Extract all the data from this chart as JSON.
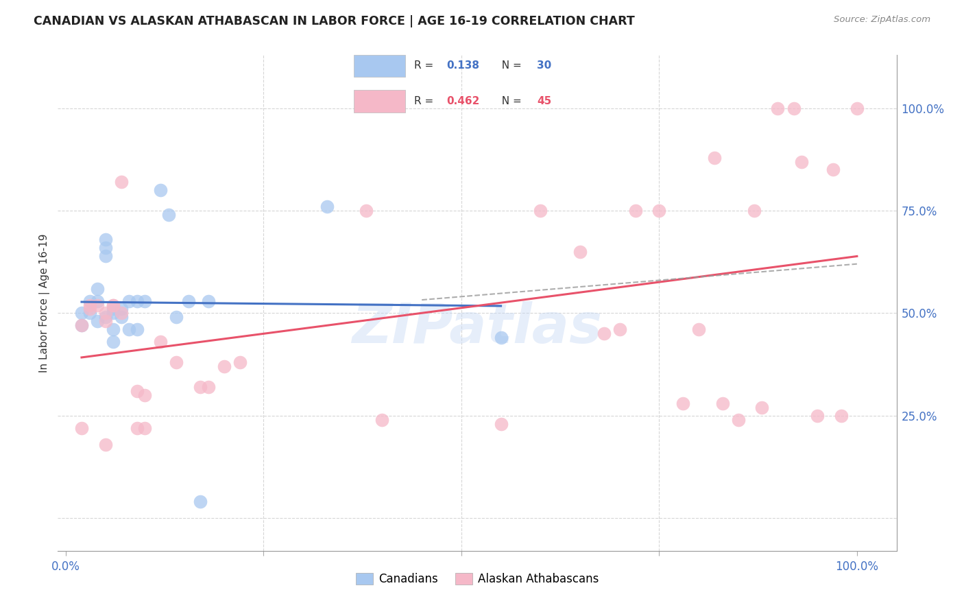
{
  "title": "CANADIAN VS ALASKAN ATHABASCAN IN LABOR FORCE | AGE 16-19 CORRELATION CHART",
  "source": "Source: ZipAtlas.com",
  "ylabel": "In Labor Force | Age 16-19",
  "canadian_color": "#A8C8F0",
  "alaskan_color": "#F5B8C8",
  "canadian_line_color": "#4472C4",
  "alaskan_line_color": "#E8526A",
  "watermark": "ZIPatlas",
  "canadians_x": [
    0.02,
    0.02,
    0.03,
    0.03,
    0.04,
    0.04,
    0.04,
    0.05,
    0.05,
    0.05,
    0.05,
    0.06,
    0.06,
    0.06,
    0.06,
    0.07,
    0.07,
    0.08,
    0.08,
    0.09,
    0.09,
    0.1,
    0.12,
    0.13,
    0.14,
    0.155,
    0.17,
    0.18,
    0.33,
    0.55
  ],
  "canadians_y": [
    0.5,
    0.47,
    0.5,
    0.53,
    0.53,
    0.56,
    0.48,
    0.64,
    0.66,
    0.68,
    0.49,
    0.51,
    0.5,
    0.46,
    0.43,
    0.49,
    0.51,
    0.53,
    0.46,
    0.53,
    0.46,
    0.53,
    0.8,
    0.74,
    0.49,
    0.53,
    0.04,
    0.53,
    0.76,
    0.44
  ],
  "alaskans_x": [
    0.02,
    0.02,
    0.03,
    0.03,
    0.04,
    0.05,
    0.05,
    0.05,
    0.06,
    0.06,
    0.07,
    0.07,
    0.09,
    0.09,
    0.1,
    0.1,
    0.12,
    0.14,
    0.17,
    0.18,
    0.22,
    0.4,
    0.55,
    0.65,
    0.7,
    0.72,
    0.75,
    0.8,
    0.82,
    0.85,
    0.87,
    0.88,
    0.9,
    0.92,
    0.93,
    0.95,
    0.97,
    0.98,
    1.0,
    0.2,
    0.38,
    0.6,
    0.68,
    0.78,
    0.83
  ],
  "alaskans_y": [
    0.47,
    0.22,
    0.52,
    0.51,
    0.52,
    0.5,
    0.48,
    0.18,
    0.52,
    0.52,
    0.82,
    0.5,
    0.31,
    0.22,
    0.3,
    0.22,
    0.43,
    0.38,
    0.32,
    0.32,
    0.38,
    0.24,
    0.23,
    0.65,
    0.46,
    0.75,
    0.75,
    0.46,
    0.88,
    0.24,
    0.75,
    0.27,
    1.0,
    1.0,
    0.87,
    0.25,
    0.85,
    0.25,
    1.0,
    0.37,
    0.75,
    0.75,
    0.45,
    0.28,
    0.28
  ],
  "xlim": [
    -0.01,
    1.05
  ],
  "ylim": [
    -0.08,
    1.13
  ],
  "x_ticks": [
    0.0,
    0.25,
    0.5,
    0.75,
    1.0
  ],
  "x_tick_labels": [
    "0.0%",
    "",
    "",
    "",
    "100.0%"
  ],
  "y_ticks": [
    0.0,
    0.25,
    0.5,
    0.75,
    1.0
  ],
  "y_tick_labels_right": [
    "",
    "25.0%",
    "50.0%",
    "75.0%",
    "100.0%"
  ],
  "grid_color": "#CCCCCC",
  "legend_box_color": "#DDDDDD"
}
